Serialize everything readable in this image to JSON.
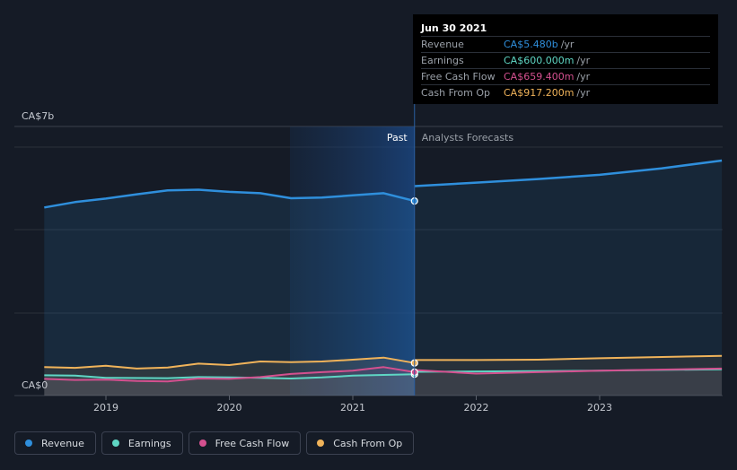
{
  "chart_data": {
    "type": "area",
    "y_axis": {
      "top_label": "CA$7b",
      "bottom_label": "CA$0",
      "ylim": [
        0,
        7
      ]
    },
    "x_ticks": [
      "2019",
      "2020",
      "2021",
      "2022",
      "2023"
    ],
    "past_label": "Past",
    "forecast_label": "Analysts Forecasts",
    "series": [
      {
        "name": "Revenue",
        "color": "#2f8fdc",
        "past": [
          [
            2018.5,
            5.3
          ],
          [
            2018.75,
            5.45
          ],
          [
            2019.0,
            5.55
          ],
          [
            2019.25,
            5.67
          ],
          [
            2019.5,
            5.78
          ],
          [
            2019.75,
            5.8
          ],
          [
            2020.0,
            5.74
          ],
          [
            2020.25,
            5.7
          ],
          [
            2020.5,
            5.56
          ],
          [
            2020.75,
            5.58
          ],
          [
            2021.0,
            5.64
          ],
          [
            2021.25,
            5.7
          ],
          [
            2021.5,
            5.48
          ]
        ],
        "forecast": [
          [
            2021.5,
            5.9
          ],
          [
            2022.0,
            6.0
          ],
          [
            2022.5,
            6.1
          ],
          [
            2023.0,
            6.22
          ],
          [
            2023.5,
            6.4
          ],
          [
            2023.99,
            6.62
          ]
        ]
      },
      {
        "name": "Earnings",
        "color": "#5fd6c4",
        "past": [
          [
            2018.5,
            0.57
          ],
          [
            2018.75,
            0.56
          ],
          [
            2019.0,
            0.5
          ],
          [
            2019.5,
            0.49
          ],
          [
            2019.75,
            0.52
          ],
          [
            2020.0,
            0.51
          ],
          [
            2020.25,
            0.5
          ],
          [
            2020.5,
            0.48
          ],
          [
            2020.75,
            0.51
          ],
          [
            2021.0,
            0.56
          ],
          [
            2021.25,
            0.58
          ],
          [
            2021.5,
            0.6
          ]
        ],
        "forecast": [
          [
            2021.5,
            0.67
          ],
          [
            2022.0,
            0.68
          ],
          [
            2023.0,
            0.7
          ],
          [
            2023.99,
            0.74
          ]
        ]
      },
      {
        "name": "Free Cash Flow",
        "color": "#d4508f",
        "past": [
          [
            2018.5,
            0.47
          ],
          [
            2018.75,
            0.44
          ],
          [
            2019.0,
            0.45
          ],
          [
            2019.25,
            0.41
          ],
          [
            2019.5,
            0.4
          ],
          [
            2019.75,
            0.48
          ],
          [
            2020.0,
            0.47
          ],
          [
            2020.25,
            0.52
          ],
          [
            2020.5,
            0.61
          ],
          [
            2020.75,
            0.66
          ],
          [
            2021.0,
            0.7
          ],
          [
            2021.25,
            0.8
          ],
          [
            2021.5,
            0.6594
          ]
        ],
        "forecast": [
          [
            2021.5,
            0.72
          ],
          [
            2022.0,
            0.62
          ],
          [
            2022.5,
            0.66
          ],
          [
            2023.0,
            0.7
          ],
          [
            2023.99,
            0.76
          ]
        ]
      },
      {
        "name": "Cash From Op",
        "color": "#f0b35a",
        "past": [
          [
            2018.5,
            0.8
          ],
          [
            2018.75,
            0.78
          ],
          [
            2019.0,
            0.84
          ],
          [
            2019.25,
            0.76
          ],
          [
            2019.5,
            0.79
          ],
          [
            2019.75,
            0.9
          ],
          [
            2020.0,
            0.86
          ],
          [
            2020.25,
            0.96
          ],
          [
            2020.5,
            0.94
          ],
          [
            2020.75,
            0.96
          ],
          [
            2021.0,
            1.01
          ],
          [
            2021.25,
            1.07
          ],
          [
            2021.5,
            0.9172
          ]
        ],
        "forecast": [
          [
            2021.5,
            1.0
          ],
          [
            2022.0,
            1.0
          ],
          [
            2022.5,
            1.01
          ],
          [
            2023.0,
            1.05
          ],
          [
            2023.99,
            1.12
          ]
        ]
      }
    ]
  },
  "tooltip": {
    "date": "Jun 30 2021",
    "rows": [
      {
        "label": "Revenue",
        "value": "CA$5.480b",
        "unit": "/yr",
        "color": "#2f8fdc"
      },
      {
        "label": "Earnings",
        "value": "CA$600.000m",
        "unit": "/yr",
        "color": "#5fd6c4"
      },
      {
        "label": "Free Cash Flow",
        "value": "CA$659.400m",
        "unit": "/yr",
        "color": "#d4508f"
      },
      {
        "label": "Cash From Op",
        "value": "CA$917.200m",
        "unit": "/yr",
        "color": "#f0b35a"
      }
    ]
  },
  "legend": [
    {
      "label": "Revenue",
      "color": "#2f8fdc"
    },
    {
      "label": "Earnings",
      "color": "#5fd6c4"
    },
    {
      "label": "Free Cash Flow",
      "color": "#d4508f"
    },
    {
      "label": "Cash From Op",
      "color": "#f0b35a"
    }
  ]
}
